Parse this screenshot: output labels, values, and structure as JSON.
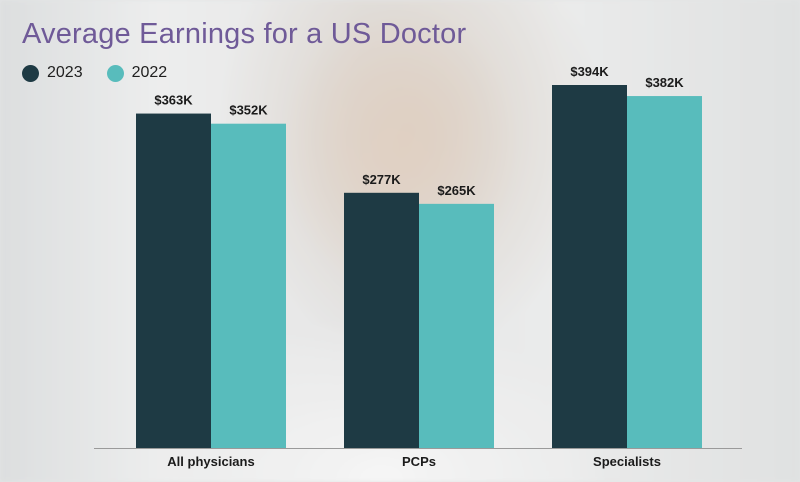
{
  "colors": {
    "title": "#6f5a98",
    "series_2023": "#1e3a44",
    "series_2022": "#58bcbc",
    "axis": "#9a9a9a"
  },
  "chart_data": {
    "type": "bar",
    "title": "Average Earnings for a US Doctor",
    "categories": [
      "All physicians",
      "PCPs",
      "Specialists"
    ],
    "series": [
      {
        "name": "2023",
        "values": [
          363,
          277,
          394
        ],
        "labels": [
          "$363K",
          "$277K",
          "$394K"
        ],
        "color": "#1e3a44"
      },
      {
        "name": "2022",
        "values": [
          352,
          265,
          382
        ],
        "labels": [
          "$352K",
          "$265K",
          "$382K"
        ],
        "color": "#58bcbc"
      }
    ],
    "unit": "thousand USD",
    "ylim": [
      0,
      400
    ],
    "grid": false,
    "legend": "top-left"
  }
}
